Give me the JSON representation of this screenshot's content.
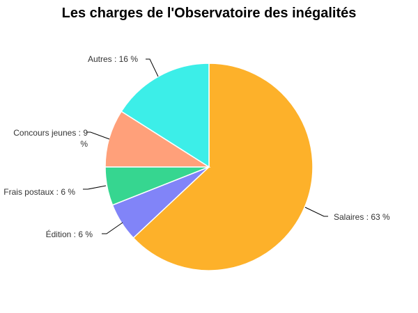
{
  "chart_data": {
    "type": "pie",
    "title": "Les charges de l'Observatoire des inégalités",
    "slices": [
      {
        "label": "Salaires",
        "value": 63,
        "text": "Salaires : 63 %",
        "color": "#FDB12A"
      },
      {
        "label": "Édition",
        "value": 6,
        "text": "Édition : 6 %",
        "color": "#8184F8"
      },
      {
        "label": "Frais postaux",
        "value": 6,
        "text": "Frais postaux : 6 %",
        "color": "#36D690"
      },
      {
        "label": "Concours jeunes",
        "value": 9,
        "text": "Concours jeunes : 9 %",
        "color": "#FFA07A"
      },
      {
        "label": "Autres",
        "value": 16,
        "text": "Autres : 16 %",
        "color": "#3CEEE8"
      }
    ]
  }
}
